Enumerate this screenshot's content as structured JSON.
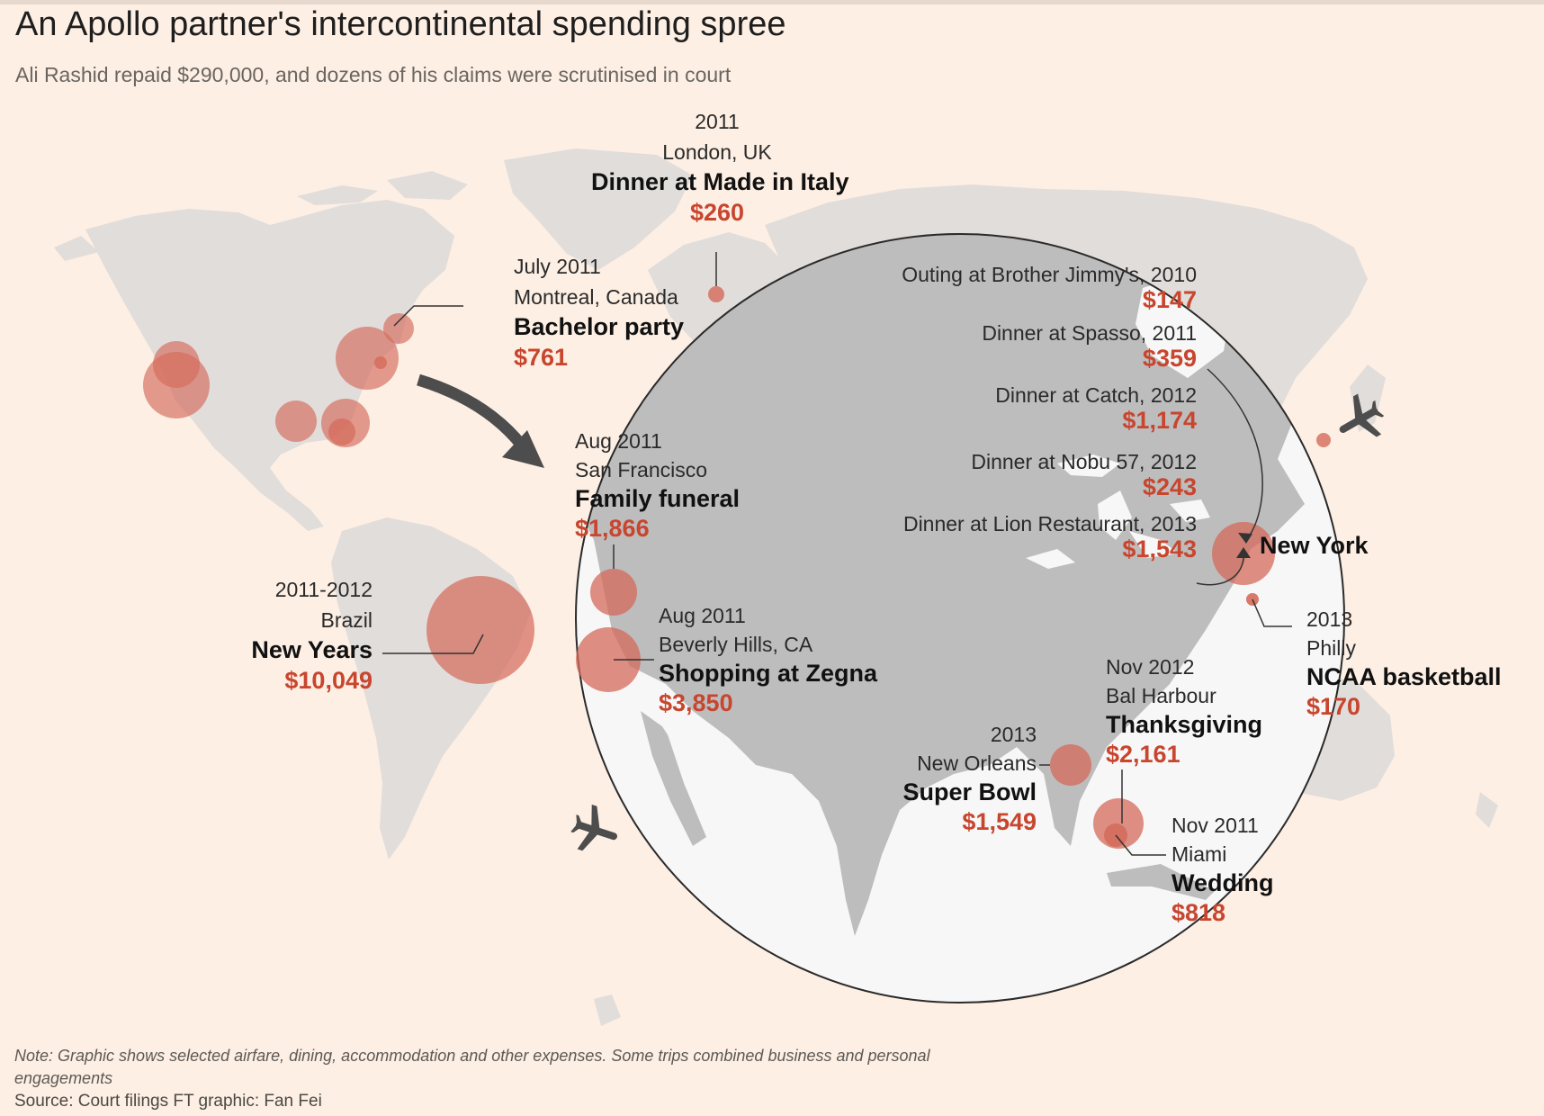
{
  "header": {
    "title": "An Apollo partner's intercontinental spending spree",
    "subtitle": "Ali Rashid repaid $290,000, and dozens of his claims were scrutinised in court"
  },
  "colors": {
    "background": "#fdefe4",
    "land": "#e1ddda",
    "zoom_land": "#bdbdbd",
    "zoom_water": "#f7f7f7",
    "bubble": "#d46a5a",
    "amount_text": "#c8452e"
  },
  "labels": {
    "london": {
      "year": "2011",
      "place": "London, UK",
      "event": "Dinner at Made in Italy",
      "amount": "$260"
    },
    "montreal": {
      "year": "July 2011",
      "place": "Montreal, Canada",
      "event": "Bachelor party",
      "amount": "$761"
    },
    "sanfrancisco": {
      "year": "Aug 2011",
      "place": "San Francisco",
      "event": "Family funeral",
      "amount": "$1,866"
    },
    "brazil": {
      "year": "2011-2012",
      "place": "Brazil",
      "event": "New Years",
      "amount": "$10,049"
    },
    "beverlyhills": {
      "year": "Aug 2011",
      "place": "Beverly Hills, CA",
      "event": "Shopping at Zegna",
      "amount": "$3,850"
    },
    "newyork": {
      "title": "New York",
      "items": [
        {
          "label": "Outing at Brother Jimmy's, 2010",
          "amount": "$147"
        },
        {
          "label": "Dinner at Spasso, 2011",
          "amount": "$359"
        },
        {
          "label": "Dinner at Catch, 2012",
          "amount": "$1,174"
        },
        {
          "label": "Dinner at Nobu 57, 2012",
          "amount": "$243"
        },
        {
          "label": "Dinner at Lion Restaurant, 2013",
          "amount": "$1,543"
        }
      ]
    },
    "philly": {
      "year": "2013",
      "place": "Philly",
      "event": "NCAA basketball",
      "amount": "$170"
    },
    "balharbour": {
      "year": "Nov 2012",
      "place": "Bal Harbour",
      "event": "Thanksgiving",
      "amount": "$2,161"
    },
    "neworleans": {
      "year": "2013",
      "place": "New Orleans",
      "event": "Super Bowl",
      "amount": "$1,549"
    },
    "miami": {
      "year": "Nov 2011",
      "place": "Miami",
      "event": "Wedding",
      "amount": "$818"
    }
  },
  "footer": {
    "note": "Note: Graphic shows selected airfare, dining, accommodation and other expenses. Some trips combined business and personal engagements",
    "source": "Source: Court filings   FT graphic: Fan Fei"
  }
}
